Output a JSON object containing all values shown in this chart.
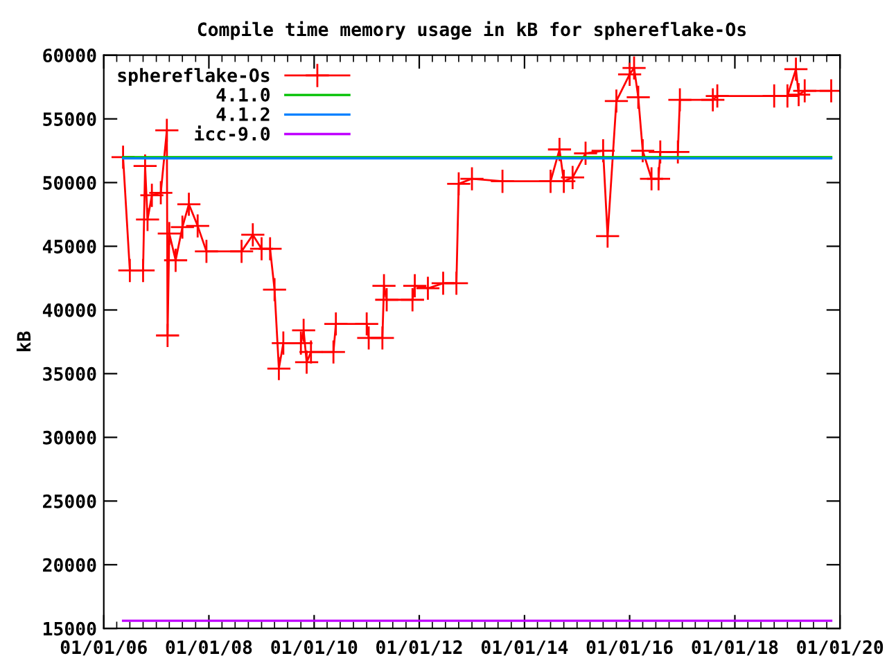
{
  "chart_data": {
    "type": "line",
    "title": "Compile time memory usage in kB for sphereflake-Os",
    "ylabel": "kB",
    "xlim": [
      "2006-01-01",
      "2020-01-01"
    ],
    "ylim": [
      15000,
      60000
    ],
    "xticks": [
      {
        "value": "2006-01-01",
        "label": "01/01/06"
      },
      {
        "value": "2008-01-01",
        "label": "01/01/08"
      },
      {
        "value": "2010-01-01",
        "label": "01/01/10"
      },
      {
        "value": "2012-01-01",
        "label": "01/01/12"
      },
      {
        "value": "2014-01-01",
        "label": "01/01/14"
      },
      {
        "value": "2016-01-01",
        "label": "01/01/16"
      },
      {
        "value": "2018-01-01",
        "label": "01/01/18"
      },
      {
        "value": "2020-01-01",
        "label": "01/01/20"
      }
    ],
    "yticks": [
      15000,
      20000,
      25000,
      30000,
      35000,
      40000,
      45000,
      50000,
      55000,
      60000
    ],
    "legend": "top left",
    "grid": false,
    "series": [
      {
        "name": "sphereflake-Os",
        "color": "#ff0000",
        "marker": "cross",
        "x": [
          "2006-05-15",
          "2006-07-01",
          "2006-10-01",
          "2006-10-15",
          "2006-11-01",
          "2006-12-01",
          "2007-02-01",
          "2007-03-15",
          "2007-03-20",
          "2007-04-01",
          "2007-05-15",
          "2007-07-01",
          "2007-08-15",
          "2007-10-15",
          "2007-12-15",
          "2008-08-15",
          "2008-11-01",
          "2009-01-01",
          "2009-03-01",
          "2009-04-01",
          "2009-05-01",
          "2009-06-01",
          "2009-10-01",
          "2009-10-20",
          "2009-11-10",
          "2009-12-10",
          "2010-05-15",
          "2010-06-01",
          "2011-01-01",
          "2011-01-15",
          "2011-04-20",
          "2011-05-01",
          "2011-05-20",
          "2011-11-15",
          "2011-12-01",
          "2012-03-01",
          "2012-06-15",
          "2012-09-15",
          "2012-10-01",
          "2013-01-01",
          "2013-08-01",
          "2014-07-01",
          "2014-09-01",
          "2014-10-01",
          "2014-12-01",
          "2015-03-01",
          "2015-07-01",
          "2015-08-01",
          "2015-10-01",
          "2016-01-01",
          "2016-02-01",
          "2016-03-01",
          "2016-04-01",
          "2016-06-01",
          "2016-07-20",
          "2016-08-01",
          "2016-12-01",
          "2016-12-15",
          "2017-08-01",
          "2017-09-01",
          "2018-10-01",
          "2019-01-01",
          "2019-03-01",
          "2019-03-20",
          "2019-05-01",
          "2019-11-01"
        ],
        "values": [
          52000,
          43100,
          43100,
          51300,
          47100,
          49000,
          49200,
          54100,
          38000,
          46000,
          43900,
          46500,
          48300,
          46600,
          44600,
          44600,
          45900,
          44800,
          44800,
          41600,
          35400,
          37400,
          37400,
          38400,
          35900,
          36700,
          36700,
          38900,
          38900,
          37800,
          37800,
          41900,
          40800,
          40800,
          41900,
          41700,
          42100,
          42100,
          49900,
          50300,
          50100,
          50100,
          52600,
          50100,
          50400,
          52300,
          52500,
          45800,
          56400,
          58500,
          59000,
          56700,
          52500,
          50300,
          50300,
          52400,
          52400,
          56500,
          56500,
          56800,
          56800,
          56800,
          58900,
          56900,
          57200,
          57200
        ]
      },
      {
        "name": "4.1.0",
        "color": "#00c000",
        "x": [
          "2006-05-15",
          "2019-11-01"
        ],
        "values": [
          52000,
          52000
        ]
      },
      {
        "name": "4.1.2",
        "color": "#0080ff",
        "x": [
          "2006-05-15",
          "2019-11-01"
        ],
        "values": [
          51900,
          51900
        ]
      },
      {
        "name": "icc-9.0",
        "color": "#c000ff",
        "x": [
          "2006-05-15",
          "2019-11-01"
        ],
        "values": [
          15600,
          15600
        ]
      }
    ]
  }
}
